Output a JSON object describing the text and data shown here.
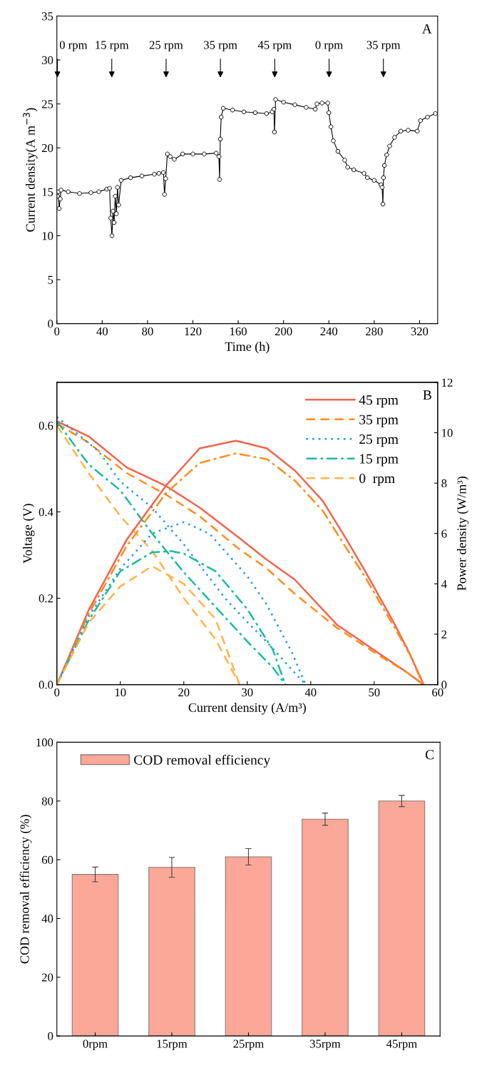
{
  "chart_data": [
    {
      "type": "line",
      "xlabel": "Time (h)",
      "ylabel": "Current density(A m$^{−3}$)",
      "xlim": [
        0,
        336
      ],
      "ylim": [
        0,
        35
      ],
      "xticks": [
        0,
        40,
        80,
        120,
        160,
        200,
        240,
        280,
        320
      ],
      "yticks": [
        0,
        5,
        10,
        15,
        20,
        25,
        30,
        35
      ],
      "grid": false,
      "legend": false,
      "marker": "circle",
      "line_style": "solid",
      "annotations": [
        "A",
        "0 rpm",
        "15 rpm",
        "25 rpm",
        "35 rpm",
        "45 rpm",
        "0 rpm",
        "35 rpm"
      ],
      "series": [
        {
          "color": "#000000",
          "x": [
            0.5,
            1.2,
            2,
            3,
            3.7,
            10,
            20,
            30,
            37,
            44,
            46.5,
            47.5,
            48.6,
            49.5,
            50.5,
            51.5,
            52.5,
            53.5,
            54.5,
            56.7,
            65,
            75,
            86,
            90,
            94,
            95,
            96,
            97.5,
            100,
            103.6,
            111,
            120,
            130,
            140.6,
            143,
            143.6,
            144.2,
            145,
            146.8,
            155,
            165,
            175,
            185,
            190,
            191.5,
            192,
            193,
            200,
            210,
            220,
            228,
            229.5,
            234,
            239,
            240,
            241.8,
            244,
            248,
            254,
            256.6,
            262,
            271,
            274,
            280,
            286,
            287,
            287.7,
            288.2,
            289,
            291,
            293.6,
            298,
            303.5,
            310,
            318,
            320.8,
            327,
            334
          ],
          "values": [
            14.5,
            15.0,
            13.1,
            14.2,
            15.2,
            15.0,
            14.8,
            14.9,
            15.0,
            15.3,
            15.4,
            12.0,
            10.0,
            12.8,
            11.5,
            14.5,
            12.5,
            15.5,
            13.5,
            16.3,
            16.6,
            16.8,
            17.0,
            17.1,
            17.2,
            14.7,
            16.5,
            19.3,
            19.0,
            18.7,
            19.3,
            19.3,
            19.3,
            19.4,
            19.0,
            16.4,
            21.0,
            23.5,
            24.5,
            24.3,
            24.1,
            24.0,
            23.9,
            24.1,
            24.4,
            21.8,
            25.5,
            25.2,
            24.9,
            24.6,
            24.4,
            25.0,
            25.1,
            25.1,
            24.0,
            22.4,
            20.8,
            19.6,
            18.6,
            17.8,
            17.5,
            17.1,
            16.6,
            16.3,
            15.8,
            15.5,
            13.6,
            16.6,
            18.0,
            19.2,
            20.2,
            21.2,
            21.9,
            22.0,
            21.9,
            23.1,
            23.5,
            23.9
          ]
        }
      ]
    },
    {
      "type": "line",
      "xlabel": "Current density (A/m³)",
      "ylabel": "Voltage (V)",
      "y2label": "Power density (W/m³)",
      "xlim": [
        0,
        60
      ],
      "ylim": [
        0,
        0.7
      ],
      "y2lim": [
        0,
        12
      ],
      "xticks": [
        0,
        10,
        20,
        30,
        40,
        50,
        60
      ],
      "yticks": [
        {
          "value": 0,
          "label": "0.0"
        },
        {
          "value": 0.2,
          "label": "0.2"
        },
        {
          "value": 0.4,
          "label": "0.4"
        },
        {
          "value": 0.6,
          "label": "0.6"
        }
      ],
      "y2ticks": [
        0,
        2,
        4,
        6,
        8,
        10,
        12
      ],
      "grid": false,
      "legend": "top right",
      "marker": "none",
      "annotations": [
        "B"
      ],
      "series": [
        {
          "name": "45 rpm",
          "color": "#f4634c",
          "line_style": "solid",
          "x": [
            0,
            5,
            11,
            17.2,
            22.5,
            28.7,
            33,
            37.5,
            44.1,
            51.2,
            55,
            57.8
          ],
          "values": [
            0.61,
            0.575,
            0.503,
            0.46,
            0.41,
            0.34,
            0.29,
            0.243,
            0.139,
            0.068,
            0.03,
            0
          ]
        },
        {
          "name": "35 rpm",
          "color": "#ff8c1a",
          "line_style": "dashed",
          "x": [
            0,
            5,
            11,
            17.2,
            22.5,
            28.7,
            33,
            37.5,
            44.1,
            50.7,
            55,
            57.7
          ],
          "values": [
            0.605,
            0.56,
            0.49,
            0.44,
            0.39,
            0.314,
            0.27,
            0.21,
            0.132,
            0.068,
            0.03,
            0
          ]
        },
        {
          "name": "25 rpm",
          "color": "#1e90ff",
          "line_style": "dotted",
          "x": [
            0,
            6.6,
            10,
            15,
            20,
            26.5,
            30,
            33,
            37,
            39.2
          ],
          "values": [
            0.62,
            0.54,
            0.47,
            0.41,
            0.325,
            0.2,
            0.145,
            0.1,
            0.035,
            0
          ]
        },
        {
          "name": "15 rpm",
          "color": "#1abc9c",
          "line_style": "dashdot",
          "x": [
            0,
            5,
            10,
            15,
            20,
            25,
            30,
            34,
            36
          ],
          "values": [
            0.61,
            0.51,
            0.45,
            0.35,
            0.26,
            0.18,
            0.1,
            0.04,
            0
          ]
        },
        {
          "name": "0  rpm",
          "color": "#ffb347",
          "line_style": "dashed",
          "x": [
            0,
            5,
            10,
            15,
            20,
            25,
            28.8
          ],
          "values": [
            0.6,
            0.49,
            0.39,
            0.31,
            0.2,
            0.105,
            0
          ]
        },
        {
          "color": "#f4634c",
          "axis": "y2",
          "line_style": "solid",
          "x": [
            0,
            5,
            11,
            17.2,
            22.5,
            28.2,
            33.1,
            37.5,
            41.9,
            45.4,
            48.5,
            52.9,
            55.6,
            57.8
          ],
          "values": [
            0,
            2.95,
            5.75,
            7.9,
            9.38,
            9.68,
            9.38,
            8.5,
            7.29,
            5.86,
            4.54,
            2.55,
            1.23,
            0
          ]
        },
        {
          "color": "#ff8c1a",
          "axis": "y2",
          "line_style": "dashdot",
          "x": [
            0,
            5,
            11,
            17.2,
            22.5,
            28.2,
            33.1,
            37.5,
            41.9,
            45.4,
            48.5,
            52.9,
            55.6,
            57.7
          ],
          "values": [
            0,
            2.8,
            5.5,
            7.6,
            8.8,
            9.18,
            8.95,
            8.1,
            6.9,
            5.5,
            4.3,
            2.4,
            1.2,
            0
          ]
        },
        {
          "color": "#1e90ff",
          "axis": "y2",
          "line_style": "dotted",
          "x": [
            0,
            5,
            10,
            15,
            20,
            24,
            26.5,
            30,
            33,
            37,
            39.2
          ],
          "values": [
            0,
            2.7,
            4.6,
            6.0,
            6.45,
            6.0,
            5.3,
            4.3,
            3.2,
            1.3,
            0
          ]
        },
        {
          "color": "#1abc9c",
          "axis": "y2",
          "line_style": "dashdot",
          "x": [
            0,
            5,
            10,
            15,
            18,
            20,
            25,
            30,
            34,
            36
          ],
          "values": [
            0,
            2.55,
            4.5,
            5.25,
            5.3,
            5.2,
            4.5,
            3.0,
            1.4,
            0
          ]
        },
        {
          "color": "#ffb347",
          "axis": "y2",
          "line_style": "dashed",
          "x": [
            0,
            5,
            10,
            15,
            20,
            25,
            28.8
          ],
          "values": [
            0,
            2.45,
            3.9,
            4.7,
            4.0,
            2.6,
            0
          ]
        }
      ]
    },
    {
      "type": "bar",
      "ylabel": "COD removal efficiency (%)",
      "categories": [
        "0rpm",
        "15rpm",
        "25rpm",
        "35rpm",
        "45rpm"
      ],
      "ylim": [
        0,
        100
      ],
      "yticks": [
        0,
        20,
        40,
        60,
        80,
        100
      ],
      "grid": false,
      "legend": "top left",
      "annotations": [
        "C"
      ],
      "series": [
        {
          "name": "COD removal efficiency",
          "color": "#fba898",
          "values": [
            55.0,
            57.4,
            61.0,
            73.8,
            80.0
          ],
          "errors": [
            2.5,
            3.4,
            2.8,
            2.1,
            1.9
          ]
        }
      ]
    }
  ]
}
